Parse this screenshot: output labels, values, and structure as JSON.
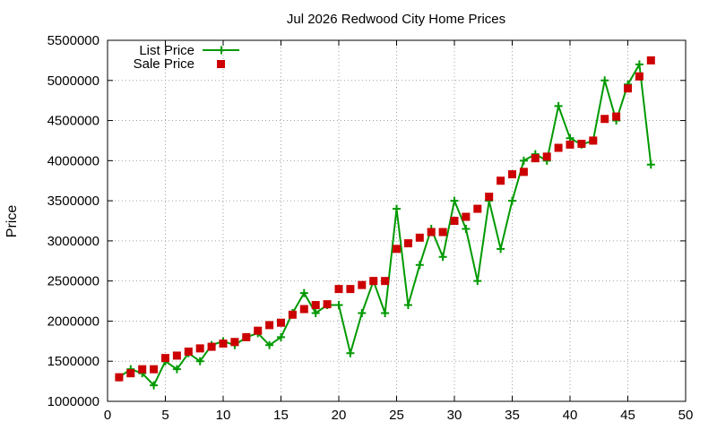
{
  "chart_data": {
    "type": "line",
    "title": "Jul 2026 Redwood City Home Prices",
    "xlabel": "",
    "ylabel": "Price",
    "xlim": [
      0,
      50
    ],
    "ylim": [
      1000000,
      5500000
    ],
    "xticks": [
      0,
      5,
      10,
      15,
      20,
      25,
      30,
      35,
      40,
      45,
      50
    ],
    "yticks": [
      1000000,
      1500000,
      2000000,
      2500000,
      3000000,
      3500000,
      4000000,
      4500000,
      5000000,
      5500000
    ],
    "grid": true,
    "legend_position": "top-left",
    "series": [
      {
        "name": "List Price",
        "style": "line-with-plus-markers",
        "color": "#009900",
        "x": [
          1,
          2,
          3,
          4,
          5,
          6,
          7,
          8,
          9,
          10,
          11,
          12,
          13,
          14,
          15,
          16,
          17,
          18,
          19,
          20,
          21,
          22,
          23,
          24,
          25,
          26,
          27,
          28,
          29,
          30,
          31,
          32,
          33,
          34,
          35,
          36,
          37,
          38,
          39,
          40,
          41,
          42,
          43,
          44,
          45,
          46,
          47
        ],
        "y": [
          1300000,
          1400000,
          1350000,
          1200000,
          1500000,
          1400000,
          1600000,
          1500000,
          1700000,
          1750000,
          1700000,
          1800000,
          1850000,
          1700000,
          1800000,
          2100000,
          2350000,
          2100000,
          2200000,
          2200000,
          1600000,
          2100000,
          2500000,
          2100000,
          3400000,
          2200000,
          2700000,
          3150000,
          2800000,
          3500000,
          3150000,
          2500000,
          3500000,
          2900000,
          3500000,
          4000000,
          4080000,
          4000000,
          4680000,
          4280000,
          4200000,
          4250000,
          5000000,
          4500000,
          4950000,
          5200000,
          3950000
        ]
      },
      {
        "name": "Sale Price",
        "style": "square-markers",
        "color": "#cc0000",
        "x": [
          1,
          2,
          3,
          4,
          5,
          6,
          7,
          8,
          9,
          10,
          11,
          12,
          13,
          14,
          15,
          16,
          17,
          18,
          19,
          20,
          21,
          22,
          23,
          24,
          25,
          26,
          27,
          28,
          29,
          30,
          31,
          32,
          33,
          34,
          35,
          36,
          37,
          38,
          39,
          40,
          41,
          42,
          43,
          44,
          45,
          46,
          47
        ],
        "y": [
          1300000,
          1350000,
          1400000,
          1400000,
          1540000,
          1570000,
          1620000,
          1660000,
          1680000,
          1720000,
          1740000,
          1800000,
          1880000,
          1950000,
          1980000,
          2080000,
          2150000,
          2200000,
          2210000,
          2400000,
          2400000,
          2450000,
          2500000,
          2500000,
          2900000,
          2970000,
          3040000,
          3110000,
          3110000,
          3250000,
          3300000,
          3400000,
          3550000,
          3750000,
          3830000,
          3860000,
          4030000,
          4050000,
          4160000,
          4200000,
          4210000,
          4250000,
          4520000,
          4550000,
          4900000,
          5050000,
          5250000
        ]
      }
    ]
  }
}
